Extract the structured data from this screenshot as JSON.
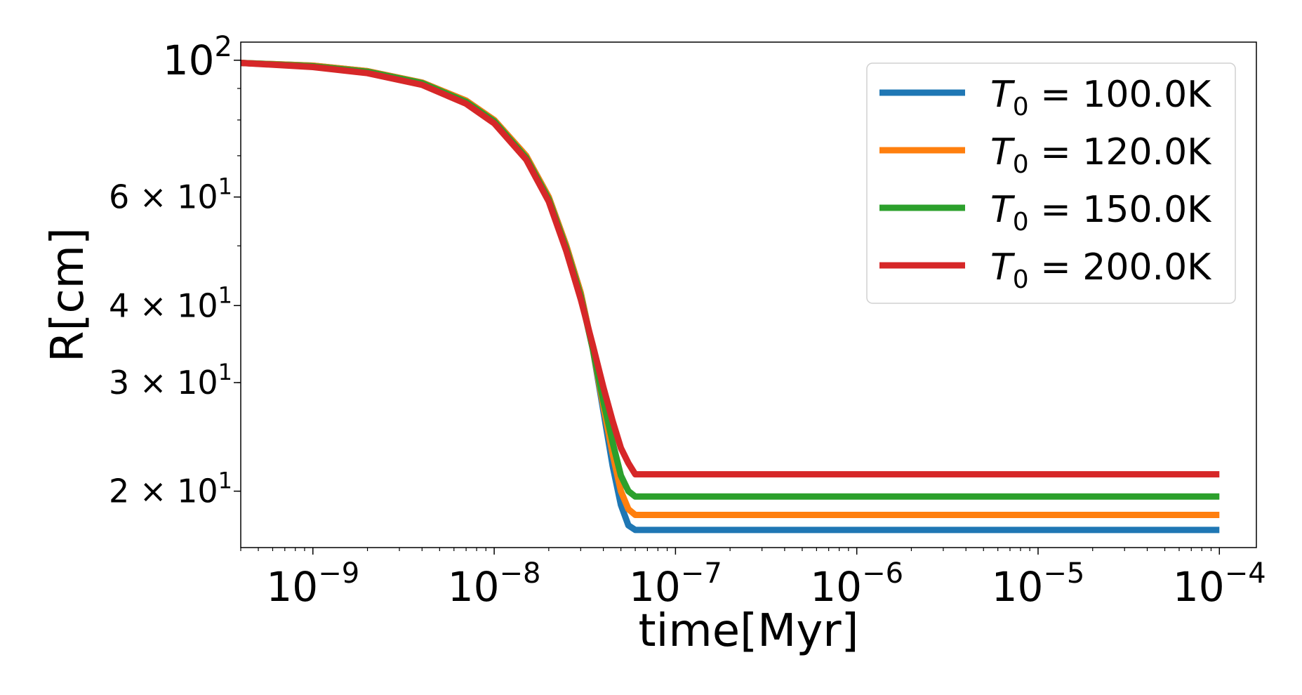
{
  "chart_data": {
    "type": "line",
    "title": "",
    "xlabel": "time[Myr]",
    "ylabel": "R[cm]",
    "xscale": "log",
    "yscale": "log",
    "xlim": [
      4e-10,
      0.00016
    ],
    "ylim": [
      16.2,
      107
    ],
    "grid": false,
    "legend_position": "top-right",
    "x_ticks": [
      {
        "value": 1e-09,
        "base": "10",
        "exp": "−9"
      },
      {
        "value": 1e-08,
        "base": "10",
        "exp": "−8"
      },
      {
        "value": 1e-07,
        "base": "10",
        "exp": "−7"
      },
      {
        "value": 1e-06,
        "base": "10",
        "exp": "−6"
      },
      {
        "value": 1e-05,
        "base": "10",
        "exp": "−5"
      },
      {
        "value": 0.0001,
        "base": "10",
        "exp": "−4"
      }
    ],
    "y_ticks": [
      {
        "value": 100,
        "mant": "",
        "base": "10",
        "exp": "2"
      },
      {
        "value": 60,
        "mant": "6 × ",
        "base": "10",
        "exp": "1"
      },
      {
        "value": 40,
        "mant": "4 × ",
        "base": "10",
        "exp": "1"
      },
      {
        "value": 30,
        "mant": "3 × ",
        "base": "10",
        "exp": "1"
      },
      {
        "value": 20,
        "mant": "2 × ",
        "base": "10",
        "exp": "1"
      }
    ],
    "series": [
      {
        "name": "T_0 = 100.0K",
        "legend_symbol": "T",
        "legend_sub": "0",
        "legend_value": " = 100.0K",
        "color": "#1f77b4",
        "x": [
          4e-10,
          1e-09,
          2e-09,
          4e-09,
          7e-09,
          1e-08,
          1.5e-08,
          2e-08,
          2.5e-08,
          3e-08,
          3.5e-08,
          4e-08,
          4.5e-08,
          5e-08,
          5.5e-08,
          6e-08,
          1e-07,
          1e-06,
          1e-05,
          0.0001
        ],
        "y": [
          99.0,
          98.0,
          96.0,
          92.0,
          86.0,
          80.0,
          70.0,
          60.0,
          50.0,
          42.0,
          34.0,
          27.0,
          22.0,
          19.0,
          17.6,
          17.3,
          17.3,
          17.3,
          17.3,
          17.3
        ]
      },
      {
        "name": "T_0 = 120.0K",
        "legend_symbol": "T",
        "legend_sub": "0",
        "legend_value": " = 120.0K",
        "color": "#ff7f0e",
        "x": [
          4e-10,
          1e-09,
          2e-09,
          4e-09,
          7e-09,
          1e-08,
          1.5e-08,
          2e-08,
          2.5e-08,
          3e-08,
          3.5e-08,
          4e-08,
          4.5e-08,
          5e-08,
          5.5e-08,
          6e-08,
          1e-07,
          1e-06,
          1e-05,
          0.0001
        ],
        "y": [
          99.0,
          98.0,
          96.0,
          92.0,
          86.0,
          80.0,
          70.0,
          60.0,
          50.0,
          42.0,
          34.0,
          27.5,
          23.0,
          20.0,
          18.7,
          18.3,
          18.3,
          18.3,
          18.3,
          18.3
        ]
      },
      {
        "name": "T_0 = 150.0K",
        "legend_symbol": "T",
        "legend_sub": "0",
        "legend_value": " = 150.0K",
        "color": "#2ca02c",
        "x": [
          4e-10,
          1e-09,
          2e-09,
          4e-09,
          7e-09,
          1e-08,
          1.5e-08,
          2e-08,
          2.5e-08,
          3e-08,
          3.5e-08,
          4e-08,
          4.5e-08,
          5e-08,
          5.5e-08,
          6e-08,
          1e-07,
          1e-06,
          1e-05,
          0.0001
        ],
        "y": [
          99.0,
          97.8,
          95.8,
          91.8,
          85.6,
          79.6,
          69.5,
          59.5,
          49.5,
          41.5,
          34.0,
          28.0,
          24.0,
          21.2,
          20.0,
          19.6,
          19.6,
          19.6,
          19.6,
          19.6
        ]
      },
      {
        "name": "T_0 = 200.0K",
        "legend_symbol": "T",
        "legend_sub": "0",
        "legend_value": " = 200.0K",
        "color": "#d62728",
        "x": [
          4e-10,
          1e-09,
          2e-09,
          4e-09,
          7e-09,
          1e-08,
          1.5e-08,
          2e-08,
          2.5e-08,
          3e-08,
          3.5e-08,
          4e-08,
          4.5e-08,
          5e-08,
          5.5e-08,
          6e-08,
          1e-07,
          1e-06,
          1e-05,
          0.0001
        ],
        "y": [
          99.0,
          97.5,
          95.3,
          91.2,
          85.0,
          79.0,
          69.0,
          59.0,
          49.0,
          41.0,
          34.5,
          29.5,
          26.0,
          23.5,
          22.2,
          21.3,
          21.3,
          21.3,
          21.3,
          21.3
        ]
      }
    ]
  }
}
